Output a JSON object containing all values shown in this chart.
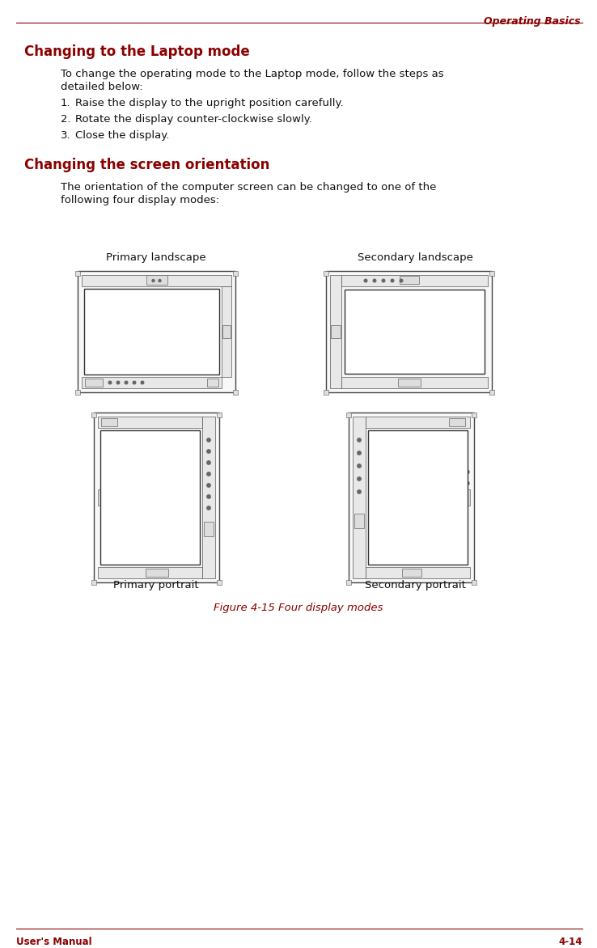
{
  "page_title": "Operating Basics",
  "section1_title": "Changing to the Laptop mode",
  "section1_body_line1": "To change the operating mode to the Laptop mode, follow the steps as",
  "section1_body_line2": "detailed below:",
  "steps": [
    "Raise the display to the upright position carefully.",
    "Rotate the display counter-clockwise slowly.",
    "Close the display."
  ],
  "section2_title": "Changing the screen orientation",
  "section2_body_line1": "The orientation of the computer screen can be changed to one of the",
  "section2_body_line2": "following four display modes:",
  "figure_caption": "Figure 4-15 Four display modes",
  "label_tl": "Primary landscape",
  "label_tr": "Secondary landscape",
  "label_bl": "Primary portrait",
  "label_br": "Secondary portrait",
  "footer_left": "User's Manual",
  "footer_right": "4-14",
  "red": "#8B0000",
  "black": "#111111",
  "gray_line": "#888888",
  "bg": "#FFFFFF"
}
